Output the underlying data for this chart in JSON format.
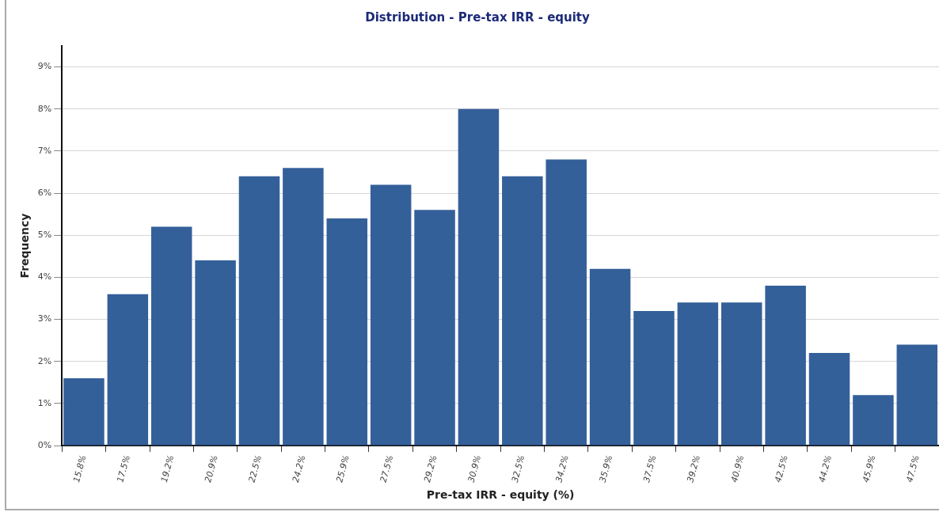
{
  "chart_data": {
    "type": "bar",
    "title": "Distribution - Pre-tax IRR - equity",
    "xlabel": "Pre-tax IRR - equity (%)",
    "ylabel": "Frequency",
    "categories": [
      "15.8%",
      "17.5%",
      "19.2%",
      "20.9%",
      "22.5%",
      "24.2%",
      "25.9%",
      "27.5%",
      "29.2%",
      "30.9%",
      "32.5%",
      "34.2%",
      "35.9%",
      "37.5%",
      "39.2%",
      "40.9%",
      "42.5%",
      "44.2%",
      "45.9%",
      "47.5%"
    ],
    "values": [
      1.6,
      3.6,
      5.2,
      4.4,
      6.4,
      6.6,
      5.4,
      6.2,
      5.6,
      8.0,
      6.4,
      6.8,
      4.2,
      3.2,
      3.4,
      3.4,
      3.8,
      2.2,
      1.2,
      2.4
    ],
    "color": "#34609a",
    "ylim": [
      0,
      9.5
    ],
    "yticks": [
      {
        "value": 0,
        "label": "0%"
      },
      {
        "value": 1,
        "label": "1%"
      },
      {
        "value": 2,
        "label": "2%"
      },
      {
        "value": 3,
        "label": "3%"
      },
      {
        "value": 4,
        "label": "4%"
      },
      {
        "value": 5,
        "label": "5%"
      },
      {
        "value": 6,
        "label": "6%"
      },
      {
        "value": 7,
        "label": "7%"
      },
      {
        "value": 8,
        "label": "8%"
      },
      {
        "value": 9,
        "label": "9%"
      }
    ],
    "grid": "y",
    "legend": false
  }
}
